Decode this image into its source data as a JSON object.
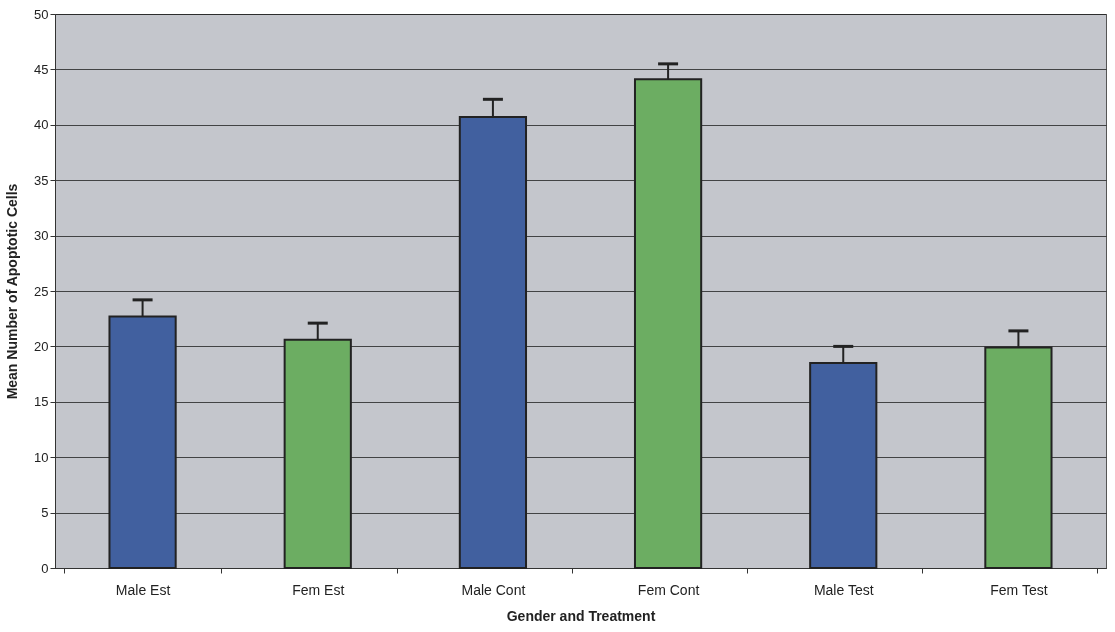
{
  "chart_data": {
    "type": "bar",
    "xlabel": "Gender and Treatment",
    "ylabel": "Mean Number of Apoptotic Cells",
    "categories": [
      "Male Est",
      "Fem Est",
      "Male Cont",
      "Fem Cont",
      "Male Test",
      "Fem Test"
    ],
    "values": [
      22.7,
      20.6,
      40.7,
      44.1,
      18.5,
      19.9
    ],
    "colors": [
      "#41609f",
      "#6cad62",
      "#41609f",
      "#6cad62",
      "#41609f",
      "#6cad62"
    ],
    "errors": [
      [
        22.7,
        24.2
      ],
      [
        20.6,
        22.1
      ],
      [
        40.7,
        42.3
      ],
      [
        44.1,
        45.5
      ],
      [
        18.5,
        20.0
      ],
      [
        19.9,
        21.4
      ]
    ],
    "ylim": [
      0,
      50
    ],
    "yticks": [
      0,
      5,
      10,
      15,
      20,
      25,
      30,
      35,
      40,
      45,
      50
    ],
    "grid": "y"
  }
}
